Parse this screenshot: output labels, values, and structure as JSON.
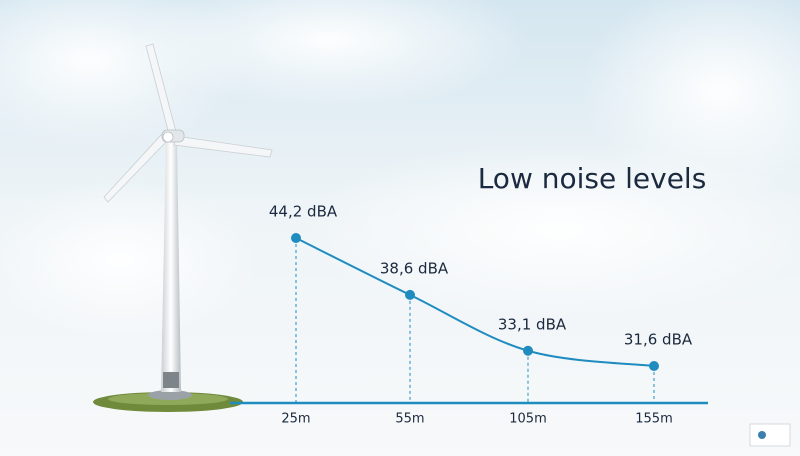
{
  "chart_data": {
    "type": "line",
    "title": "Low noise levels",
    "categories": [
      "25m",
      "55m",
      "105m",
      "155m"
    ],
    "values": [
      44.2,
      38.6,
      33.1,
      31.6
    ],
    "value_labels": [
      "44,2 dBA",
      "38,6 dBA",
      "33,1 dBA",
      "31,6 dBA"
    ],
    "color": "#1f8cc0"
  }
}
